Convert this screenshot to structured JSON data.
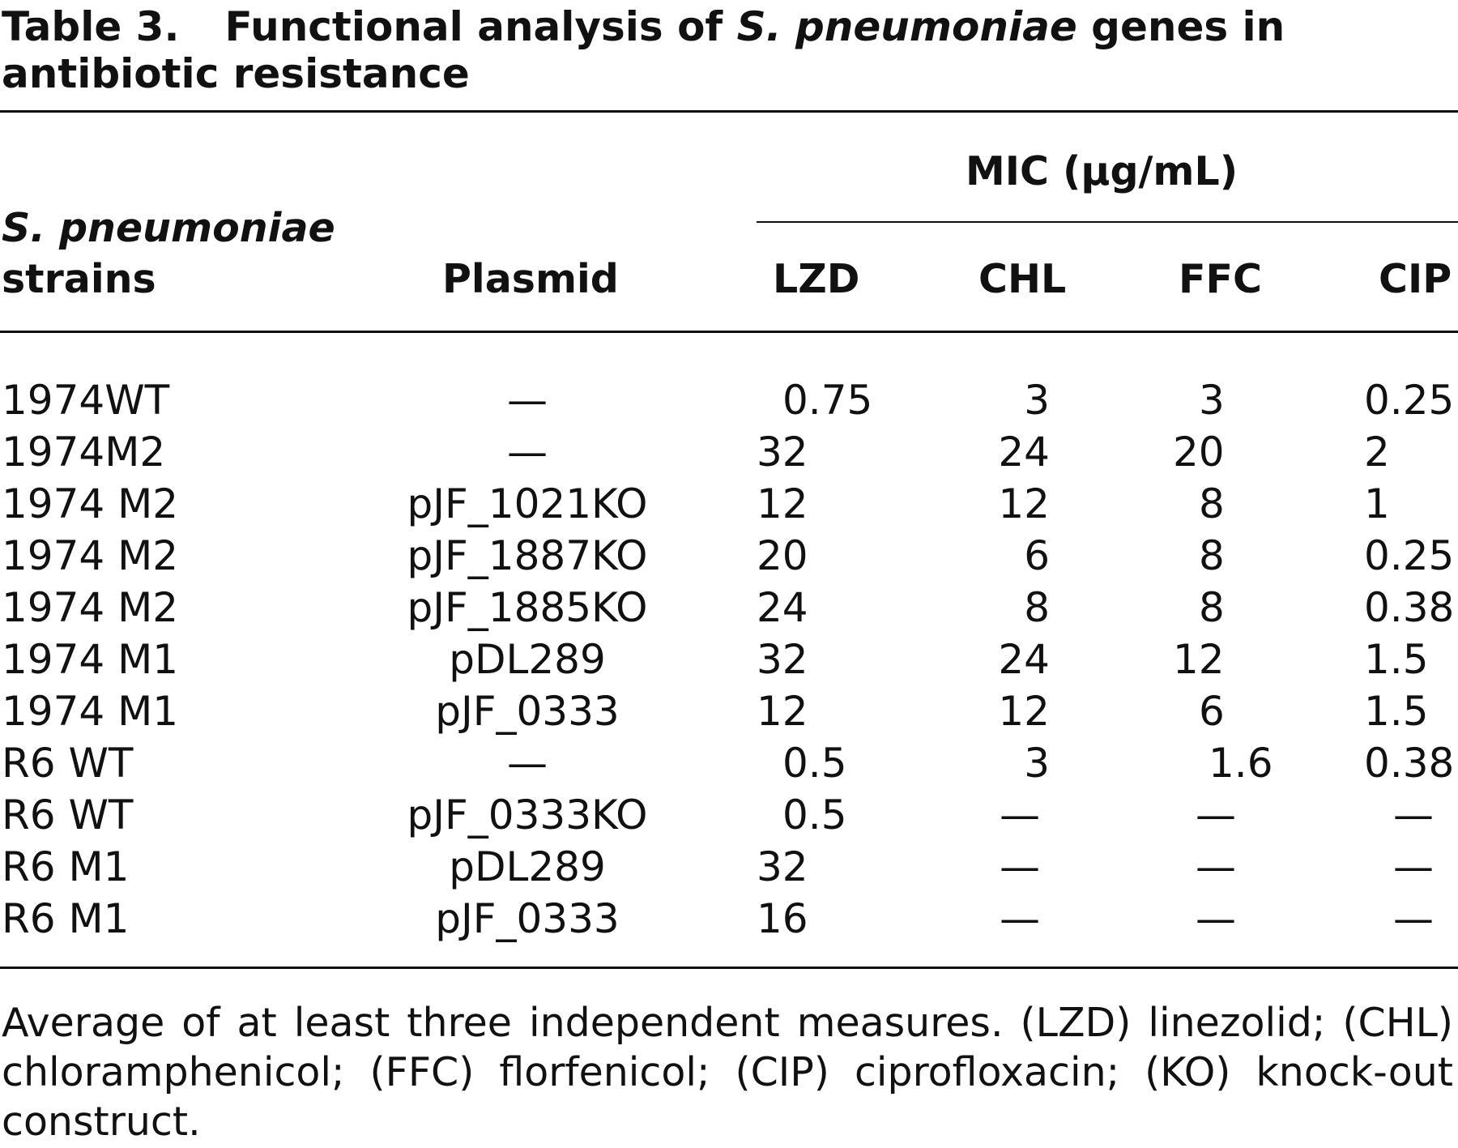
{
  "title": {
    "label": "Table 3.",
    "text_before": "Functional analysis of ",
    "organism": "S. pneumoniae",
    "text_after": " genes in antibiotic resistance"
  },
  "header": {
    "strain_line1": "S. pneumoniae",
    "strain_line2": "strains",
    "plasmid": "Plasmid",
    "mic_group": "MIC (µg/mL)",
    "lzd": "LZD",
    "chl": "CHL",
    "ffc": "FFC",
    "cip": "CIP"
  },
  "rows": [
    {
      "strain": "1974WT",
      "plasmid": "—",
      "lzd": "0.75",
      "chl": "3",
      "ffc": "3",
      "cip": "0.25"
    },
    {
      "strain": "1974M2",
      "plasmid": "—",
      "lzd": "32",
      "chl": "24",
      "ffc": "20",
      "cip": "2"
    },
    {
      "strain": "1974 M2",
      "plasmid": "pJF_1021KO",
      "lzd": "12",
      "chl": "12",
      "ffc": "8",
      "cip": "1"
    },
    {
      "strain": "1974 M2",
      "plasmid": "pJF_1887KO",
      "lzd": "20",
      "chl": "6",
      "ffc": "8",
      "cip": "0.25"
    },
    {
      "strain": "1974 M2",
      "plasmid": "pJF_1885KO",
      "lzd": "24",
      "chl": "8",
      "ffc": "8",
      "cip": "0.38"
    },
    {
      "strain": "1974 M1",
      "plasmid": "pDL289",
      "lzd": "32",
      "chl": "24",
      "ffc": "12",
      "cip": "1.5"
    },
    {
      "strain": "1974 M1",
      "plasmid": "pJF_0333",
      "lzd": "12",
      "chl": "12",
      "ffc": "6",
      "cip": "1.5"
    },
    {
      "strain": "R6 WT",
      "plasmid": "—",
      "lzd": "0.5",
      "chl": "3",
      "ffc": "1.6",
      "cip": "0.38"
    },
    {
      "strain": "R6 WT",
      "plasmid": "pJF_0333KO",
      "lzd": "0.5",
      "chl": "—",
      "ffc": "—",
      "cip": "—"
    },
    {
      "strain": "R6 M1",
      "plasmid": "pDL289",
      "lzd": "32",
      "chl": "—",
      "ffc": "—",
      "cip": "—"
    },
    {
      "strain": "R6 M1",
      "plasmid": "pJF_0333",
      "lzd": "16",
      "chl": "—",
      "ffc": "—",
      "cip": "—"
    }
  ],
  "footnote": "Average of at least three independent measures. (LZD) linezolid; (CHL) chloramphenicol; (FFC) florfenicol; (CIP) ciprofloxacin; (KO) knock-out construct."
}
